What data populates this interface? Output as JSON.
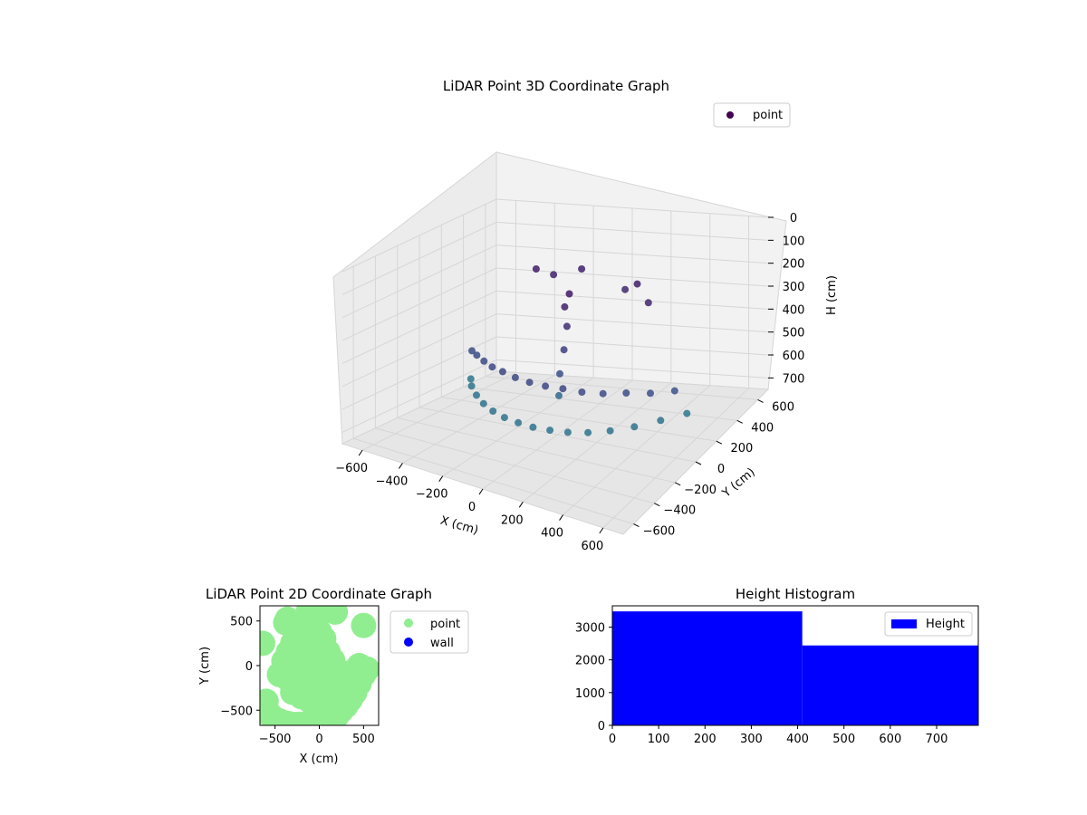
{
  "colors": {
    "scatter_cmap": [
      "#440154",
      "#3b528b",
      "#21918c"
    ],
    "points_2d": "#90ee90",
    "wall_2d": "#0000ff",
    "histogram": "#0000ff",
    "pane": "#f2f2f2",
    "grid": "#d6d6d6"
  },
  "chart_data": [
    {
      "id": "lidar-3d",
      "type": "scatter",
      "projection": "3d",
      "title": "LiDAR Point 3D Coordinate Graph",
      "xlabel": "X (cm)",
      "ylabel": "Y (cm)",
      "zlabel": "H (cm)",
      "xticks": [
        -600,
        -400,
        -200,
        0,
        200,
        400,
        600
      ],
      "yticks": [
        -600,
        -400,
        -200,
        0,
        200,
        400,
        600
      ],
      "zticks": [
        0,
        100,
        200,
        300,
        400,
        500,
        600,
        700
      ],
      "xlim": [
        -700,
        700
      ],
      "ylim": [
        -700,
        700
      ],
      "zlim": [
        0,
        750
      ],
      "z_inverted": true,
      "legend": {
        "entries": [
          "point"
        ],
        "placement": "upper right"
      },
      "grid": true,
      "series": [
        {
          "name": "point",
          "description_shape": "curved wall of points along an arc plus a vertical column near the center",
          "x": [
            -550,
            -480,
            -400,
            -320,
            -240,
            -160,
            -80,
            0,
            80,
            160,
            240,
            320,
            400,
            480,
            550,
            -500,
            -420,
            -340,
            -260,
            -180,
            -100,
            -20,
            60,
            140,
            220,
            300,
            380,
            460,
            530,
            -20,
            -10,
            0,
            10,
            20,
            30,
            -300,
            -250,
            200,
            300,
            100,
            -150
          ],
          "y": [
            200,
            80,
            -20,
            -100,
            -160,
            -200,
            -220,
            -230,
            -220,
            -200,
            -160,
            -100,
            -20,
            80,
            200,
            120,
            20,
            -60,
            -130,
            -180,
            -210,
            -225,
            -225,
            -210,
            -180,
            -130,
            -60,
            20,
            120,
            50,
            40,
            60,
            70,
            30,
            55,
            350,
            420,
            380,
            300,
            450,
            500
          ],
          "z": [
            650,
            640,
            640,
            640,
            640,
            640,
            640,
            640,
            640,
            640,
            640,
            640,
            640,
            640,
            650,
            500,
            480,
            470,
            460,
            450,
            450,
            450,
            450,
            450,
            460,
            470,
            480,
            500,
            520,
            600,
            500,
            400,
            300,
            200,
            150,
            180,
            220,
            200,
            240,
            260,
            210
          ]
        }
      ]
    },
    {
      "id": "lidar-2d",
      "type": "scatter",
      "title": "LiDAR Point 2D Coordinate Graph",
      "xlabel": "X (cm)",
      "ylabel": "Y (cm)",
      "xticks": [
        -500,
        0,
        500
      ],
      "yticks": [
        -500,
        0,
        500
      ],
      "xlim": [
        -670,
        670
      ],
      "ylim": [
        -670,
        670
      ],
      "legend": {
        "entries": [
          "point",
          "wall"
        ],
        "placement": "outside right"
      },
      "series": [
        {
          "name": "point",
          "x": [
            -600,
            -640,
            -560,
            -500,
            -450,
            -400,
            -350,
            -300,
            -250,
            -200,
            -150,
            -100,
            -50,
            0,
            50,
            100,
            150,
            200,
            250,
            300,
            350,
            400,
            450,
            500,
            540,
            -300,
            -200,
            -100,
            0,
            100,
            200,
            300,
            -450,
            -350,
            -250,
            -150,
            -50,
            50,
            150,
            250,
            350,
            450,
            -400,
            -300,
            -200,
            -100,
            0,
            100,
            200,
            -350,
            -250,
            -150,
            -50,
            50,
            150,
            -300,
            -200,
            -100,
            0,
            100,
            -250,
            -150,
            -50,
            50,
            -200,
            -100,
            0,
            -150,
            -50,
            0,
            -360,
            -380,
            -100,
            0,
            -120,
            -40,
            80,
            180,
            500
          ],
          "y": [
            -400,
            250,
            -550,
            -600,
            -620,
            -640,
            -650,
            -660,
            -660,
            -660,
            -660,
            -660,
            -660,
            -660,
            -660,
            -640,
            -600,
            -560,
            -500,
            -450,
            -380,
            -300,
            -200,
            -100,
            -40,
            -300,
            -350,
            -400,
            -420,
            -380,
            -300,
            -200,
            -100,
            -150,
            -200,
            -250,
            -260,
            -250,
            -200,
            -150,
            -80,
            0,
            50,
            0,
            -50,
            -100,
            -120,
            -100,
            -50,
            150,
            100,
            50,
            0,
            20,
            60,
            250,
            200,
            150,
            120,
            150,
            350,
            300,
            250,
            300,
            420,
            400,
            380,
            500,
            520,
            600,
            520,
            480,
            560,
            650,
            620,
            580,
            620,
            600,
            450
          ]
        },
        {
          "name": "wall",
          "x": [],
          "y": []
        }
      ]
    },
    {
      "id": "height-histogram",
      "type": "bar",
      "title": "Height Histogram",
      "xlabel": "",
      "ylabel": "",
      "xticks": [
        0,
        100,
        200,
        300,
        400,
        500,
        600,
        700
      ],
      "yticks": [
        0,
        1000,
        2000,
        3000
      ],
      "xlim": [
        0,
        790
      ],
      "ylim": [
        0,
        3650
      ],
      "legend": {
        "entries": [
          "Height"
        ],
        "placement": "upper right"
      },
      "bins": [
        {
          "start": 0,
          "end": 410,
          "value": 3480
        },
        {
          "start": 410,
          "end": 790,
          "value": 2440
        }
      ]
    }
  ]
}
